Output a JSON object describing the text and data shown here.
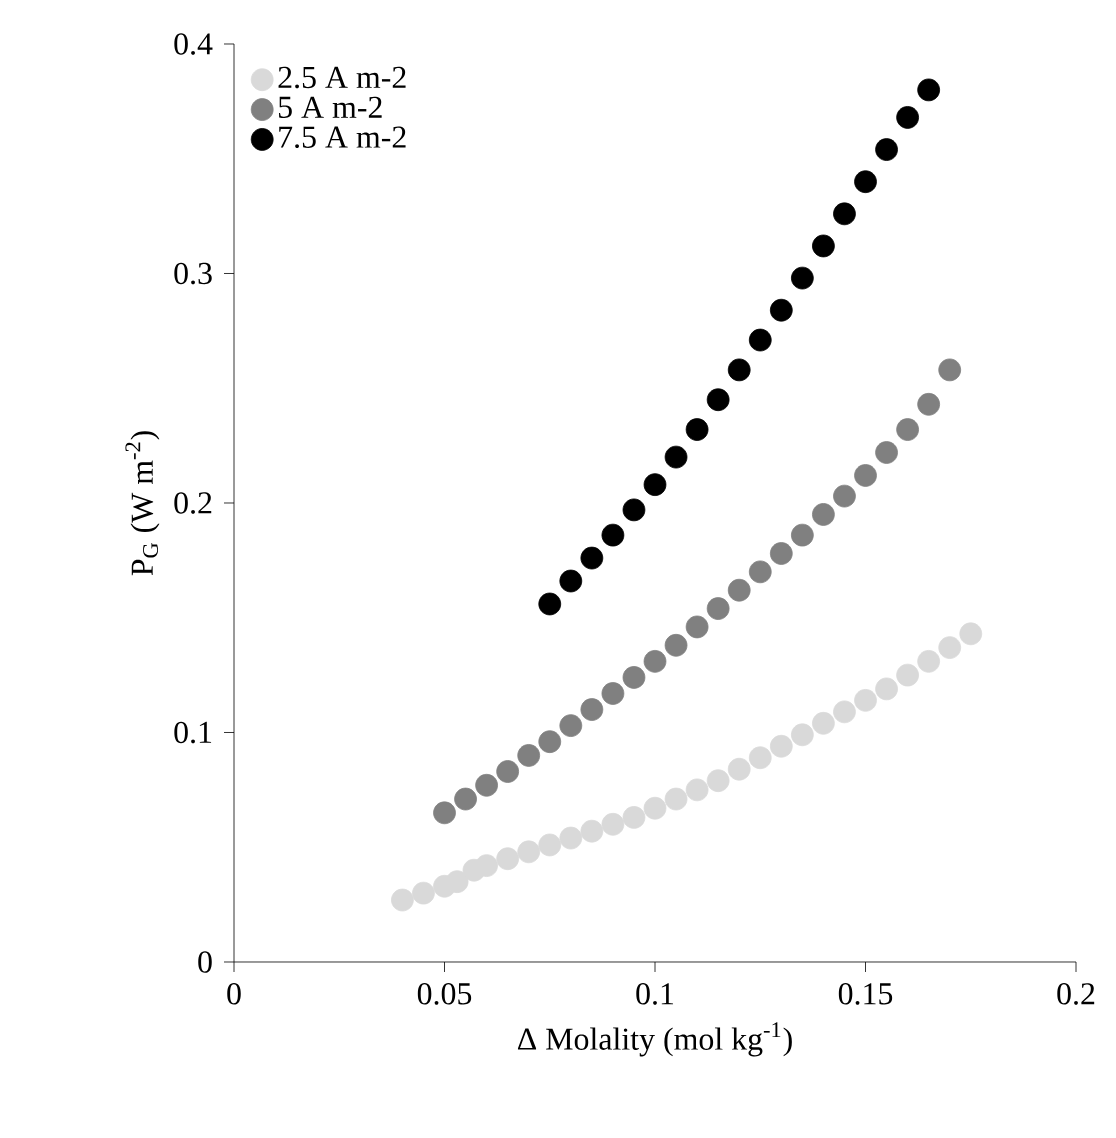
{
  "chart_data": {
    "type": "scatter",
    "xlabel": "Δ Molality (mol kg$^{-1}$)",
    "ylabel": "P$_{G}$ (W m$^{-2}$)",
    "xlim": [
      0,
      0.2
    ],
    "ylim": [
      0,
      0.4
    ],
    "xticks": [
      0,
      0.05,
      0.1,
      0.15,
      0.2
    ],
    "yticks": [
      0,
      0.1,
      0.2,
      0.3,
      0.4
    ],
    "grid": false,
    "legend": "top left",
    "marker": "circle",
    "series": [
      {
        "name": "2.5 A m-2",
        "color": "#d9d9d9",
        "x": [
          0.04,
          0.045,
          0.05,
          0.053,
          0.057,
          0.06,
          0.065,
          0.07,
          0.075,
          0.08,
          0.085,
          0.09,
          0.095,
          0.1,
          0.105,
          0.11,
          0.115,
          0.12,
          0.125,
          0.13,
          0.135,
          0.14,
          0.145,
          0.15,
          0.155,
          0.16,
          0.165,
          0.17,
          0.175
        ],
        "values": [
          0.027,
          0.03,
          0.033,
          0.035,
          0.04,
          0.042,
          0.045,
          0.048,
          0.051,
          0.054,
          0.057,
          0.06,
          0.063,
          0.067,
          0.071,
          0.075,
          0.079,
          0.084,
          0.089,
          0.094,
          0.099,
          0.104,
          0.109,
          0.114,
          0.119,
          0.125,
          0.131,
          0.137,
          0.143
        ]
      },
      {
        "name": "5 A m-2",
        "color": "#808080",
        "x": [
          0.05,
          0.055,
          0.06,
          0.065,
          0.07,
          0.075,
          0.08,
          0.085,
          0.09,
          0.095,
          0.1,
          0.105,
          0.11,
          0.115,
          0.12,
          0.125,
          0.13,
          0.135,
          0.14,
          0.145,
          0.15,
          0.155,
          0.16,
          0.165,
          0.17
        ],
        "values": [
          0.065,
          0.071,
          0.077,
          0.083,
          0.09,
          0.096,
          0.103,
          0.11,
          0.117,
          0.124,
          0.131,
          0.138,
          0.146,
          0.154,
          0.162,
          0.17,
          0.178,
          0.186,
          0.195,
          0.203,
          0.212,
          0.222,
          0.232,
          0.243,
          0.258
        ]
      },
      {
        "name": "7.5 A m-2",
        "color": "#000000",
        "x": [
          0.075,
          0.08,
          0.085,
          0.09,
          0.095,
          0.1,
          0.105,
          0.11,
          0.115,
          0.12,
          0.125,
          0.13,
          0.135,
          0.14,
          0.145,
          0.15,
          0.155,
          0.16,
          0.165
        ],
        "values": [
          0.156,
          0.166,
          0.176,
          0.186,
          0.197,
          0.208,
          0.22,
          0.232,
          0.245,
          0.258,
          0.271,
          0.284,
          0.298,
          0.312,
          0.326,
          0.34,
          0.354,
          0.368,
          0.38
        ]
      }
    ]
  }
}
